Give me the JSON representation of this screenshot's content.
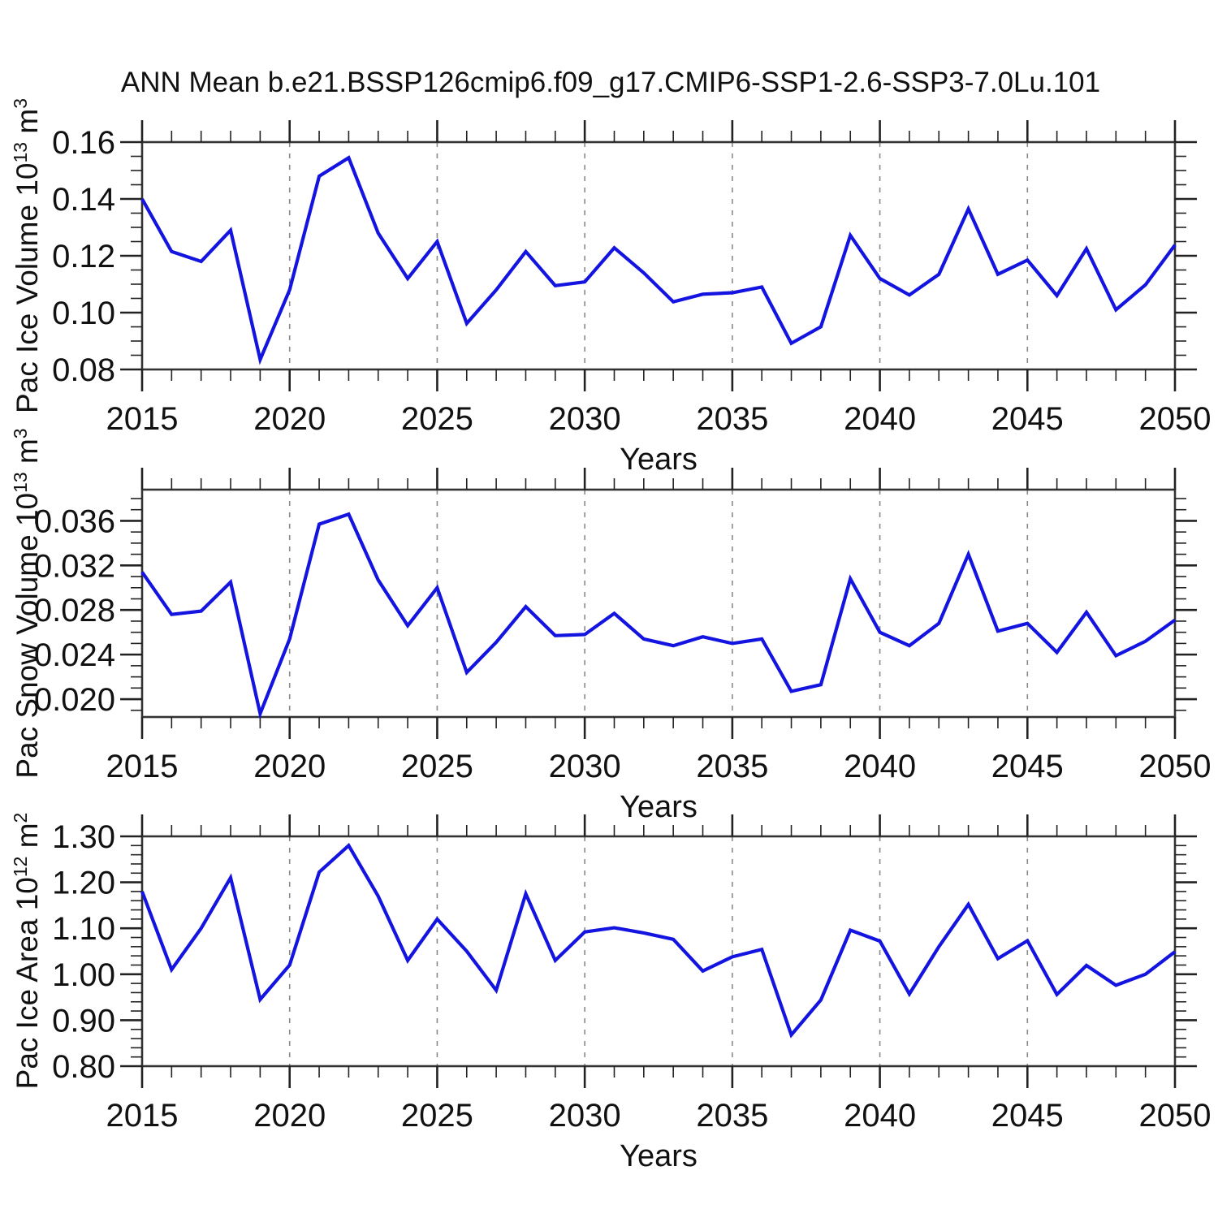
{
  "title": "ANN Mean b.e21.BSSP126cmip6.f09_g17.CMIP6-SSP1-2.6-SSP3-7.0Lu.101",
  "x_axis": {
    "label": "Years",
    "years": [
      2015,
      2016,
      2017,
      2018,
      2019,
      2020,
      2021,
      2022,
      2023,
      2024,
      2025,
      2026,
      2027,
      2028,
      2029,
      2030,
      2031,
      2032,
      2033,
      2034,
      2035,
      2036,
      2037,
      2038,
      2039,
      2040,
      2041,
      2042,
      2043,
      2044,
      2045,
      2046,
      2047,
      2048,
      2049,
      2050
    ],
    "major_ticks": [
      2015,
      2020,
      2025,
      2030,
      2035,
      2040,
      2045,
      2050
    ],
    "major_tick_labels": [
      "2015",
      "2020",
      "2025",
      "2030",
      "2035",
      "2040",
      "2045",
      "2050"
    ],
    "minor_step_years": 1,
    "gridline_years": [
      2020,
      2025,
      2030,
      2035,
      2040,
      2045
    ],
    "xlim": [
      2015,
      2050
    ]
  },
  "style": {
    "line_color": "#1414e0",
    "axis_color": "#333333",
    "tick_color": "#222222",
    "grid_color": "#8a8a8a",
    "text_color": "#111111",
    "background": "#ffffff"
  },
  "chart_data": [
    {
      "type": "line",
      "name": "pac-ice-volume",
      "ylabel": "Pac Ice Volume 10^13 m^3",
      "ylabel_parts": [
        "Pac Ice Volume 10",
        "13",
        " m",
        "3"
      ],
      "xlabel": "Years",
      "ylim": [
        0.08,
        0.16
      ],
      "ytick_values": [
        0.16,
        0.14,
        0.12,
        0.1,
        0.08
      ],
      "ytick_labels": [
        "0.16",
        "0.14",
        "0.12",
        "0.10",
        "0.08"
      ],
      "ytick_minor_step": 0.005,
      "grid": "vertical-dashed",
      "legend": "none",
      "values": [
        0.14,
        0.1215,
        0.118,
        0.129,
        0.0835,
        0.108,
        0.148,
        0.1545,
        0.128,
        0.112,
        0.125,
        0.0962,
        0.108,
        0.1215,
        0.1095,
        0.1108,
        0.1228,
        0.114,
        0.1038,
        0.1065,
        0.107,
        0.109,
        0.0892,
        0.095,
        0.1272,
        0.112,
        0.1062,
        0.1135,
        0.1365,
        0.1135,
        0.1185,
        0.106,
        0.1225,
        0.101,
        0.1098,
        0.1238
      ]
    },
    {
      "type": "line",
      "name": "pac-snow-volume",
      "ylabel": "Pac Snow Volume 10^13 m^3",
      "ylabel_parts": [
        "Pac Snow Volume 10",
        "13",
        " m",
        "3"
      ],
      "xlabel": "Years",
      "ylim": [
        0.0184,
        0.0388
      ],
      "ytick_values": [
        0.036,
        0.032,
        0.028,
        0.024,
        0.02
      ],
      "ytick_labels": [
        "0.036",
        "0.032",
        "0.028",
        "0.024",
        "0.020"
      ],
      "ytick_minor_step": 0.001,
      "grid": "vertical-dashed",
      "legend": "none",
      "values": [
        0.0314,
        0.0276,
        0.0279,
        0.0305,
        0.0187,
        0.0254,
        0.0357,
        0.0366,
        0.0307,
        0.0266,
        0.03,
        0.0224,
        0.0251,
        0.0283,
        0.0257,
        0.0258,
        0.0277,
        0.0254,
        0.0248,
        0.0256,
        0.025,
        0.0254,
        0.0207,
        0.0213,
        0.0308,
        0.026,
        0.0248,
        0.0268,
        0.033,
        0.0261,
        0.0268,
        0.0242,
        0.0278,
        0.0239,
        0.0252,
        0.0271
      ]
    },
    {
      "type": "line",
      "name": "pac-ice-area",
      "ylabel": "Pac Ice Area 10^12 m^2",
      "ylabel_parts": [
        "Pac Ice Area 10",
        "12",
        " m",
        "2"
      ],
      "xlabel": "Years",
      "ylim": [
        0.8,
        1.3
      ],
      "ytick_values": [
        1.3,
        1.2,
        1.1,
        1.0,
        0.9,
        0.8
      ],
      "ytick_labels": [
        "1.30",
        "1.20",
        "1.10",
        "1.00",
        "0.90",
        "0.80"
      ],
      "ytick_minor_step": 0.02,
      "grid": "vertical-dashed",
      "legend": "none",
      "values": [
        1.18,
        1.01,
        1.1,
        1.21,
        0.945,
        1.02,
        1.222,
        1.28,
        1.17,
        1.03,
        1.12,
        1.05,
        0.965,
        1.175,
        1.03,
        1.092,
        1.101,
        1.09,
        1.076,
        1.007,
        1.038,
        1.054,
        0.868,
        0.944,
        1.096,
        1.072,
        0.957,
        1.06,
        1.152,
        1.034,
        1.073,
        0.956,
        1.019,
        0.976,
        1.0,
        1.049
      ]
    }
  ]
}
